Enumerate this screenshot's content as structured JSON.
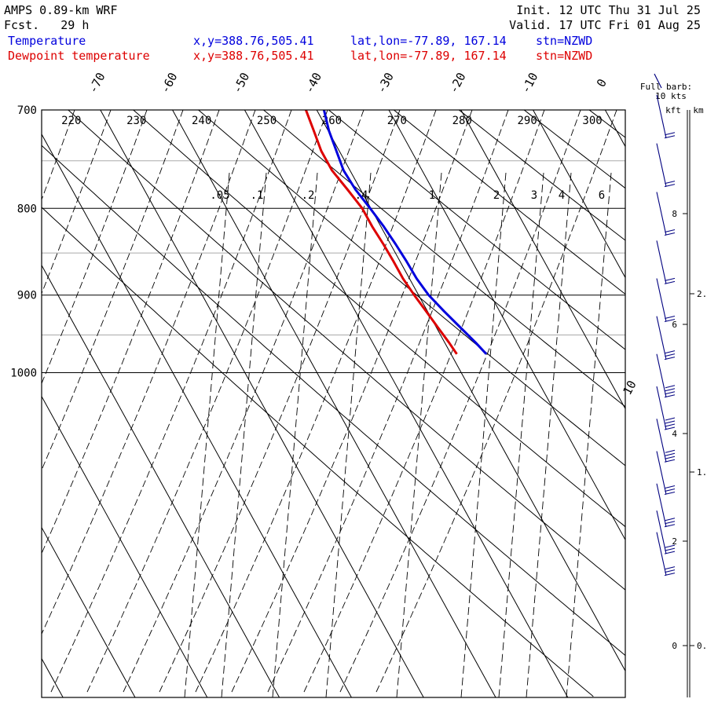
{
  "header": {
    "model": "AMPS 0.89-km WRF",
    "fcst": "Fcst.   29 h",
    "init": "Init. 12 UTC Thu 31 Jul 25",
    "valid": "Valid. 17 UTC Fri 01 Aug 25",
    "temp_label": "Temperature",
    "dew_label": "Dewpoint temperature",
    "temp_xy": "x,y=388.76,505.41",
    "temp_latlon": "lat,lon=-77.89, 167.14",
    "temp_stn": "stn=NZWD",
    "dew_xy": "x,y=388.76,505.41",
    "dew_latlon": "lat,lon=-77.89, 167.14",
    "dew_stn": "stn=NZWD"
  },
  "barb_legend": {
    "line1": "Full barb:",
    "line2": "10 kts"
  },
  "height_axis": {
    "kft_label": "kft",
    "km_label": "km"
  },
  "colors": {
    "temperature": "#0000dd",
    "dewpoint": "#dd0000",
    "grid": "#000000",
    "minor_grid": "#aaaaaa"
  },
  "chart_data": {
    "type": "line",
    "diagram": "skew-T log-p",
    "pressure_labels": [
      "700",
      "800",
      "900",
      "1000"
    ],
    "isotherm_labels": [
      "-70",
      "-60",
      "-50",
      "-40",
      "-30",
      "-20",
      "-10",
      "0",
      "10"
    ],
    "theta_labels": [
      "220",
      "230",
      "240",
      "250",
      "260",
      "270",
      "280",
      "290",
      "300"
    ],
    "mixing_ratio_labels": [
      ".05",
      ".1",
      ".2",
      ".4",
      "1",
      "2",
      "3",
      "4",
      "6"
    ],
    "kft_ticks": [
      "8",
      "6",
      "4",
      "2",
      "0"
    ],
    "km_ticks": [
      "2.",
      "1.",
      "0."
    ],
    "series": [
      {
        "name": "Temperature",
        "points": [
          [
            700,
            -39.0
          ],
          [
            720,
            -39.9
          ],
          [
            740,
            -40.4
          ],
          [
            760,
            -40.9
          ],
          [
            780,
            -40.7
          ],
          [
            800,
            -40.1
          ],
          [
            820,
            -39.6
          ],
          [
            840,
            -39.3
          ],
          [
            860,
            -39.1
          ],
          [
            880,
            -39.0
          ],
          [
            900,
            -38.6
          ],
          [
            920,
            -37.7
          ],
          [
            940,
            -36.7
          ],
          [
            960,
            -35.7
          ],
          [
            975,
            -35.1
          ]
        ]
      },
      {
        "name": "Dewpoint temperature",
        "points": [
          [
            700,
            -41.5
          ],
          [
            720,
            -42.0
          ],
          [
            740,
            -42.5
          ],
          [
            760,
            -42.5
          ],
          [
            780,
            -41.8
          ],
          [
            800,
            -41.2
          ],
          [
            820,
            -41.2
          ],
          [
            840,
            -41.0
          ],
          [
            860,
            -40.9
          ],
          [
            880,
            -40.9
          ],
          [
            900,
            -40.6
          ],
          [
            920,
            -40.2
          ],
          [
            940,
            -39.8
          ],
          [
            960,
            -39.4
          ],
          [
            975,
            -39.2
          ]
        ]
      }
    ],
    "wind_barbs": [
      {
        "kft": 9.4,
        "kts": 20
      },
      {
        "kft": 8.5,
        "kts": 20
      },
      {
        "kft": 7.6,
        "kts": 20
      },
      {
        "kft": 6.7,
        "kts": 20
      },
      {
        "kft": 6.0,
        "kts": 20
      },
      {
        "kft": 5.3,
        "kts": 30
      },
      {
        "kft": 4.6,
        "kts": 40
      },
      {
        "kft": 4.0,
        "kts": 40
      },
      {
        "kft": 3.4,
        "kts": 40
      },
      {
        "kft": 2.8,
        "kts": 30
      },
      {
        "kft": 2.2,
        "kts": 30
      },
      {
        "kft": 1.7,
        "kts": 30
      },
      {
        "kft": 1.3,
        "kts": 30
      }
    ]
  }
}
